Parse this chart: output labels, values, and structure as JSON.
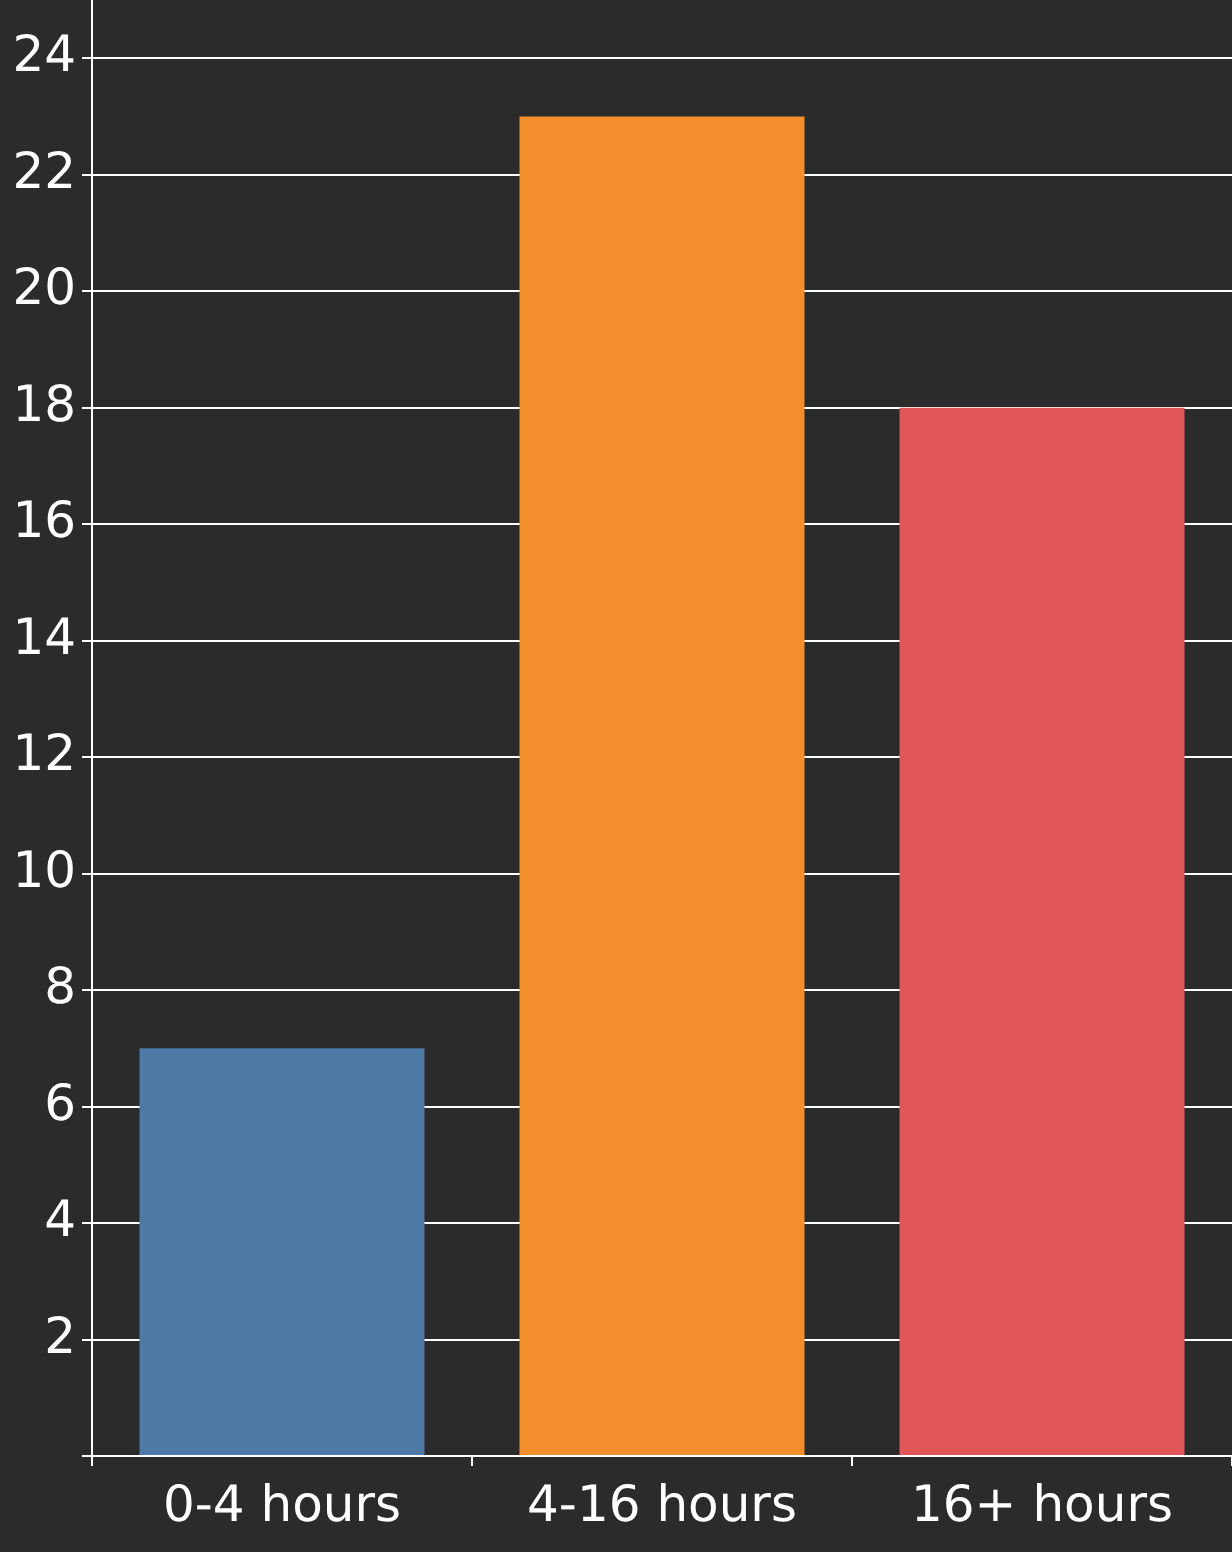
{
  "chart_data": {
    "type": "bar",
    "categories": [
      "0-4 hours",
      "4-16 hours",
      "16+ hours"
    ],
    "values": [
      7,
      23,
      18
    ],
    "colors": [
      "#4e79a7",
      "#f28e2b",
      "#e15759"
    ],
    "ylim": [
      0,
      25
    ],
    "yticks": [
      {
        "value": 0,
        "label": null
      },
      2,
      4,
      6,
      8,
      10,
      12,
      14,
      16,
      18,
      20,
      22,
      24
    ],
    "grid": "y"
  }
}
